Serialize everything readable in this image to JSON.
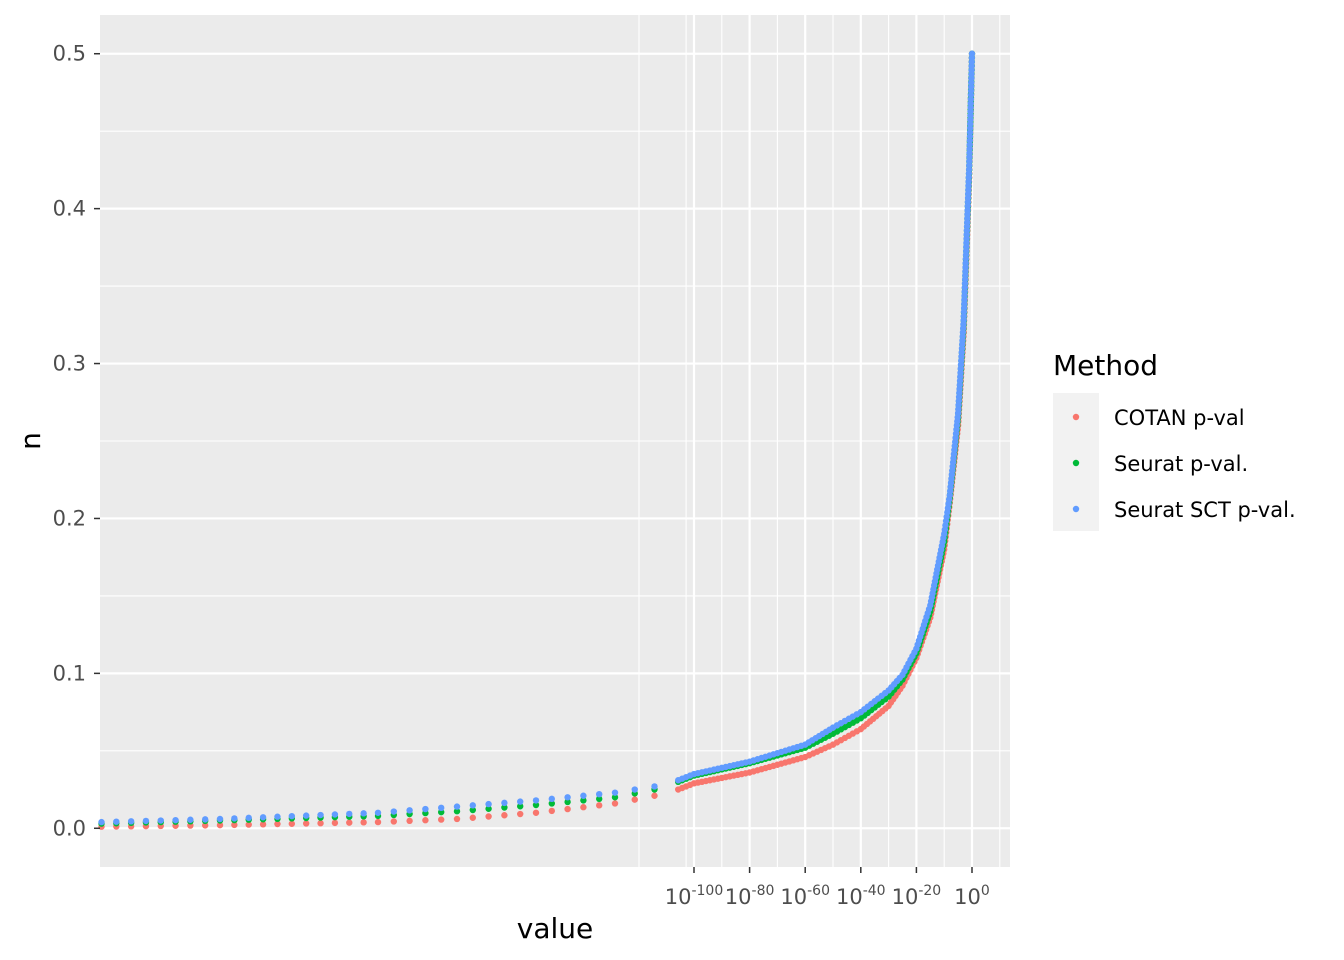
{
  "chart_data": {
    "type": "scatter",
    "xlabel": "value",
    "ylabel": "n",
    "x_scale": "log10 (compressed)",
    "x_tick_labels": [
      {
        "base": "10",
        "exp": "-100"
      },
      {
        "base": "10",
        "exp": "-80"
      },
      {
        "base": "10",
        "exp": "-60"
      },
      {
        "base": "10",
        "exp": "-40"
      },
      {
        "base": "10",
        "exp": "-20"
      },
      {
        "base": "10",
        "exp": "0"
      }
    ],
    "x_tick_exponents": [
      -100,
      -80,
      -60,
      -40,
      -20,
      0
    ],
    "y_ticks": [
      "0.0",
      "0.1",
      "0.2",
      "0.3",
      "0.4",
      "0.5"
    ],
    "ylim": [
      -0.025,
      0.525
    ],
    "grid": true,
    "legend": {
      "title": "Method",
      "position": "right",
      "entries": [
        {
          "label": "COTAN p-val",
          "color": "#F8766D"
        },
        {
          "label": "Seurat p-val.",
          "color": "#00BA38"
        },
        {
          "label": "Seurat SCT p-val.",
          "color": "#619CFF"
        }
      ]
    },
    "series": [
      {
        "name": "COTAN p-val",
        "color": "#F8766D",
        "x_log10": [
          -850,
          -700,
          -500,
          -400,
          -300,
          -200,
          -150,
          -120,
          -100,
          -80,
          -60,
          -50,
          -40,
          -30,
          -25,
          -20,
          -15,
          -10,
          -8,
          -5,
          -3,
          -1,
          0
        ],
        "y": [
          0.001,
          0.002,
          0.004,
          0.006,
          0.01,
          0.016,
          0.021,
          0.025,
          0.029,
          0.036,
          0.046,
          0.054,
          0.064,
          0.079,
          0.092,
          0.11,
          0.136,
          0.18,
          0.21,
          0.26,
          0.32,
          0.42,
          0.5
        ]
      },
      {
        "name": "Seurat p-val.",
        "color": "#00BA38",
        "x_log10": [
          -850,
          -700,
          -500,
          -400,
          -300,
          -200,
          -150,
          -120,
          -100,
          -80,
          -60,
          -50,
          -40,
          -30,
          -25,
          -20,
          -15,
          -10,
          -8,
          -5,
          -3,
          -1,
          0
        ],
        "y": [
          0.003,
          0.005,
          0.008,
          0.011,
          0.015,
          0.02,
          0.025,
          0.03,
          0.034,
          0.042,
          0.052,
          0.061,
          0.071,
          0.085,
          0.096,
          0.113,
          0.14,
          0.185,
          0.213,
          0.265,
          0.325,
          0.425,
          0.5
        ]
      },
      {
        "name": "Seurat SCT p-val.",
        "color": "#619CFF",
        "x_log10": [
          -850,
          -700,
          -500,
          -400,
          -300,
          -200,
          -150,
          -120,
          -100,
          -80,
          -60,
          -50,
          -40,
          -30,
          -25,
          -20,
          -15,
          -10,
          -8,
          -5,
          -3,
          -1,
          0
        ],
        "y": [
          0.004,
          0.006,
          0.01,
          0.014,
          0.018,
          0.023,
          0.027,
          0.031,
          0.035,
          0.043,
          0.054,
          0.065,
          0.075,
          0.089,
          0.099,
          0.116,
          0.144,
          0.19,
          0.215,
          0.268,
          0.328,
          0.428,
          0.5
        ]
      }
    ]
  }
}
